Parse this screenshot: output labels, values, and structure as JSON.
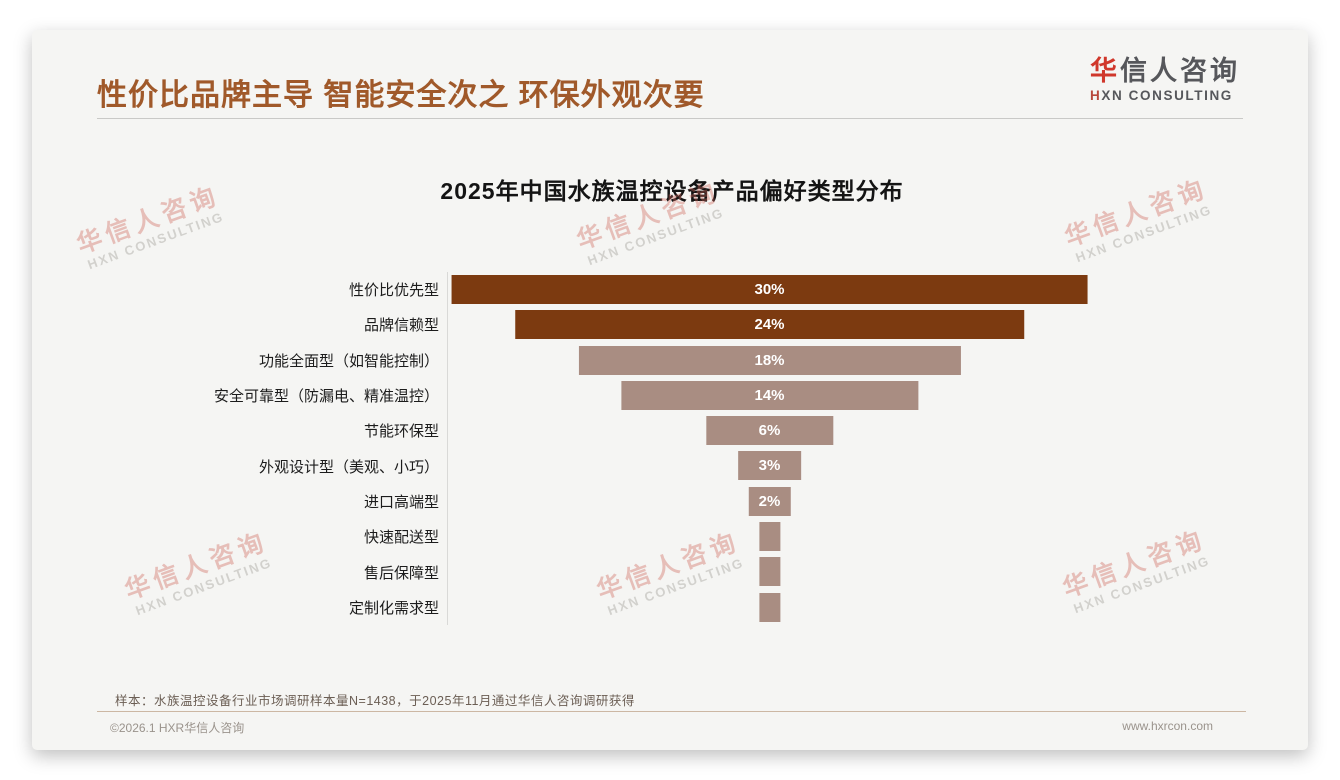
{
  "page": {
    "title": "性价比品牌主导 智能安全次之 环保外观次要"
  },
  "logo": {
    "cn_first": "华",
    "cn_rest": "信人咨询",
    "en_first": "H",
    "en_rest": "XN CONSULTING"
  },
  "watermark": {
    "cn": "华信人咨询",
    "en": "HXN CONSULTING"
  },
  "chart_data": {
    "type": "bar",
    "subtype": "centered-funnel-horizontal",
    "title": "2025年中国水族温控设备产品偏好类型分布",
    "categories": [
      "性价比优先型",
      "品牌信赖型",
      "功能全面型（如智能控制）",
      "安全可靠型（防漏电、精准温控）",
      "节能环保型",
      "外观设计型（美观、小巧）",
      "进口高端型",
      "快速配送型",
      "售后保障型",
      "定制化需求型"
    ],
    "values": [
      30,
      24,
      18,
      14,
      6,
      3,
      2,
      1,
      1,
      1
    ],
    "unit": "%",
    "value_labels_shown": [
      "30%",
      "24%",
      "18%",
      "14%",
      "6%",
      "3%",
      "2%",
      "",
      "",
      ""
    ],
    "bar_colors": [
      "#7c3a10",
      "#7c3a10",
      "#a98d82",
      "#a98d82",
      "#a98d82",
      "#a98d82",
      "#a98d82",
      "#a98d82",
      "#a98d82",
      "#a98d82"
    ],
    "accent_dark": "#7c3a10",
    "accent_light": "#a98d82",
    "xlim": [
      0,
      30
    ],
    "grid": false,
    "legend": false
  },
  "footnote": "样本：水族温控设备行业市场调研样本量N=1438，于2025年11月通过华信人咨询调研获得",
  "footer": {
    "copyright": "©2026.1 HXR华信人咨询",
    "website": "www.hxrcon.com"
  }
}
